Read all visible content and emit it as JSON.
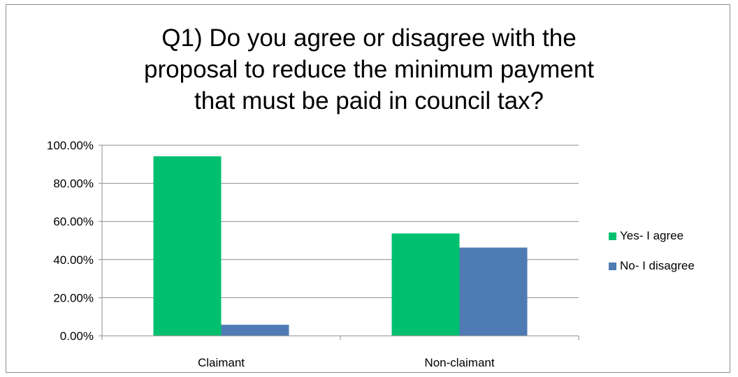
{
  "chart_data": {
    "type": "bar",
    "title_lines": [
      "Q1) Do you agree or disagree with the",
      "proposal to reduce the minimum payment",
      "that must be paid in council tax?"
    ],
    "categories": [
      "Claimant",
      "Non-claimant"
    ],
    "series": [
      {
        "name": "Yes- I agree",
        "values": [
          94.2,
          53.7
        ],
        "color": "#00c06f"
      },
      {
        "name": "No- I disagree",
        "values": [
          5.8,
          46.3
        ],
        "color": "#4f7bb5"
      }
    ],
    "ylim": [
      0,
      100
    ],
    "yticks": [
      0,
      20,
      40,
      60,
      80,
      100
    ],
    "ytick_labels": [
      "0.00%",
      "20.00%",
      "40.00%",
      "60.00%",
      "80.00%",
      "100.00%"
    ],
    "grid": true,
    "legend_position": "right"
  }
}
